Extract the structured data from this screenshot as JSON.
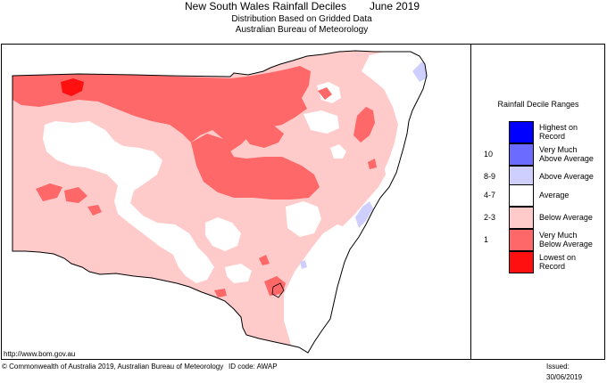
{
  "header": {
    "title": "New South Wales Rainfall Deciles",
    "period": "June 2019",
    "subtitle_1": "Distribution Based on Gridded Data",
    "subtitle_2": "Australian Bureau of Meteorology"
  },
  "legend": {
    "title": "Rainfall Decile Ranges",
    "items": [
      {
        "code": "",
        "label_1": "Highest on",
        "label_2": "Record",
        "color": "#0000ff"
      },
      {
        "code": "10",
        "label_1": "Very Much",
        "label_2": "Above Average",
        "color": "#6b6bff"
      },
      {
        "code": "8-9",
        "label_1": "Above Average",
        "label_2": "",
        "color": "#cfcfff"
      },
      {
        "code": "4-7",
        "label_1": "Average",
        "label_2": "",
        "color": "#ffffff"
      },
      {
        "code": "2-3",
        "label_1": "Below Average",
        "label_2": "",
        "color": "#ffcaca"
      },
      {
        "code": "1",
        "label_1": "Very Much",
        "label_2": "Below Average",
        "color": "#ff6868"
      },
      {
        "code": "",
        "label_1": "Lowest on",
        "label_2": "Record",
        "color": "#ff1010"
      }
    ]
  },
  "footer": {
    "url": "http://www.bom.gov.au",
    "copyright": "© Commonwealth of Australia 2019, Australian Bureau of Meteorology",
    "id_code": "ID code: AWAP",
    "issued": "Issued: 30/06/2019"
  }
}
